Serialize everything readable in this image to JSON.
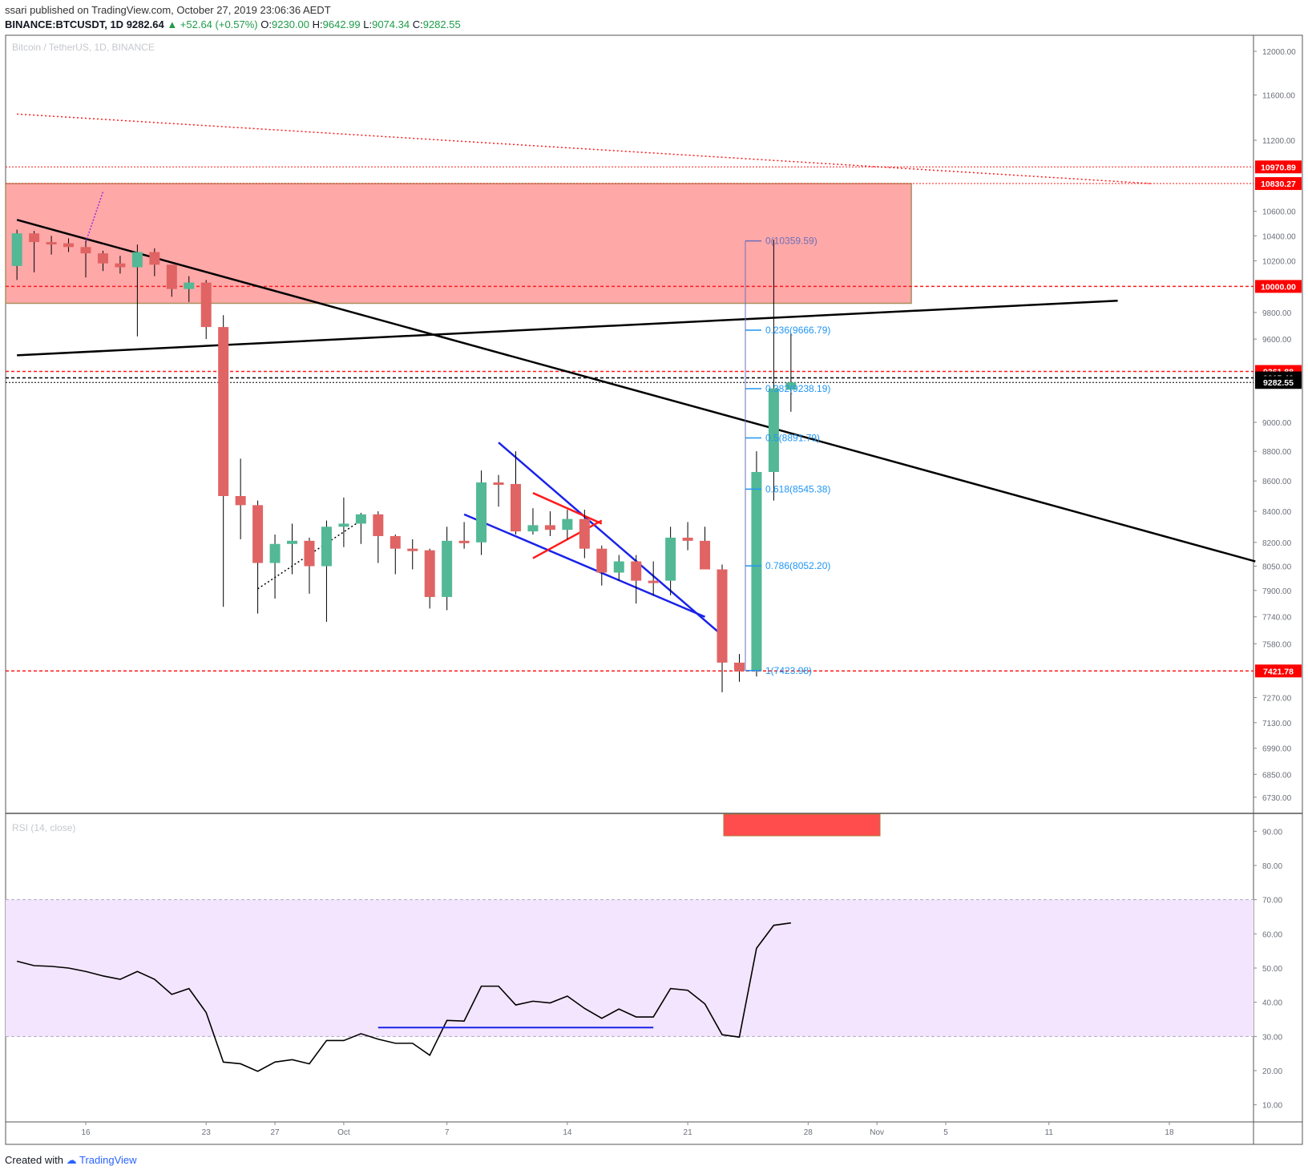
{
  "header": {
    "publisher": "ssari",
    "published_text": "published on TradingView.com, October 27, 2019 23:06:36 AEDT",
    "symbol": "BINANCE:BTCUSDT, 1D",
    "last": "9282.64",
    "change": "▲ +52.64 (+0.57%)",
    "o_label": "O:",
    "o_value": "9230.00",
    "h_label": "H:",
    "h_value": "9642.99",
    "l_label": "L:",
    "l_value": "9074.34",
    "c_label": "C:",
    "c_value": "9282.55"
  },
  "watermark": "Bitcoin / TetherUS, 1D, BINANCE",
  "rsi_label": "RSI (14, close)",
  "footer": {
    "created_with": "Created with",
    "brand": "TradingView"
  },
  "colors": {
    "up": "#53b895",
    "down": "#e06464",
    "neutral": "#9a8a6a",
    "zone": "#ffa8a8",
    "rsi_band": "#f3e5fd",
    "red_line": "#ff1a1a",
    "blue_line": "#1a23e8",
    "fib": "#2196f3",
    "tag_red": "#ff0000",
    "tag_black": "#000000"
  },
  "chart_data": [
    {
      "type": "candlestick",
      "title": "Bitcoin / TetherUS, 1D, BINANCE",
      "ylim": [
        6650,
        12150
      ],
      "y_scale": "log",
      "y_ticks": [
        "12000.00",
        "11600.00",
        "11200.00",
        "10600.00",
        "10400.00",
        "10200.00",
        "9800.00",
        "9600.00",
        "9000.00",
        "8800.00",
        "8600.00",
        "8400.00",
        "8200.00",
        "8050.00",
        "7900.00",
        "7740.00",
        "7580.00",
        "7270.00",
        "7130.00",
        "6990.00",
        "6850.00",
        "6730.00"
      ],
      "x_ticks": [
        {
          "label": "16",
          "day": "2019-09-16"
        },
        {
          "label": "23",
          "day": "2019-09-23"
        },
        {
          "label": "27",
          "day": "2019-09-27"
        },
        {
          "label": "Oct",
          "day": "2019-10-01"
        },
        {
          "label": "7",
          "day": "2019-10-07"
        },
        {
          "label": "14",
          "day": "2019-10-14"
        },
        {
          "label": "21",
          "day": "2019-10-21"
        },
        {
          "label": "28",
          "day": "2019-10-28"
        },
        {
          "label": "Nov",
          "day": "2019-11-01"
        },
        {
          "label": "5",
          "day": "2019-11-05"
        },
        {
          "label": "11",
          "day": "2019-11-11"
        },
        {
          "label": "18",
          "day": "2019-11-18"
        }
      ],
      "candles": [
        {
          "day": "2019-09-12",
          "o": 10160,
          "h": 10450,
          "l": 10050,
          "c": 10420
        },
        {
          "day": "2019-09-13",
          "o": 10420,
          "h": 10440,
          "l": 10110,
          "c": 10350
        },
        {
          "day": "2019-09-14",
          "o": 10350,
          "h": 10400,
          "l": 10250,
          "c": 10340
        },
        {
          "day": "2019-09-15",
          "o": 10340,
          "h": 10380,
          "l": 10270,
          "c": 10310
        },
        {
          "day": "2019-09-16",
          "o": 10310,
          "h": 10360,
          "l": 10070,
          "c": 10260
        },
        {
          "day": "2019-09-17",
          "o": 10260,
          "h": 10280,
          "l": 10120,
          "c": 10180
        },
        {
          "day": "2019-09-18",
          "o": 10180,
          "h": 10240,
          "l": 10100,
          "c": 10150
        },
        {
          "day": "2019-09-19",
          "o": 10150,
          "h": 10330,
          "l": 9620,
          "c": 10270
        },
        {
          "day": "2019-09-20",
          "o": 10270,
          "h": 10300,
          "l": 10080,
          "c": 10170
        },
        {
          "day": "2019-09-21",
          "o": 10170,
          "h": 10170,
          "l": 9920,
          "c": 9980
        },
        {
          "day": "2019-09-22",
          "o": 9980,
          "h": 10080,
          "l": 9880,
          "c": 10030
        },
        {
          "day": "2019-09-23",
          "o": 10030,
          "h": 10050,
          "l": 9600,
          "c": 9690
        },
        {
          "day": "2019-09-24",
          "o": 9690,
          "h": 9780,
          "l": 7800,
          "c": 8500
        },
        {
          "day": "2019-09-25",
          "o": 8500,
          "h": 8750,
          "l": 8220,
          "c": 8440
        },
        {
          "day": "2019-09-26",
          "o": 8440,
          "h": 8470,
          "l": 7760,
          "c": 8070
        },
        {
          "day": "2019-09-27",
          "o": 8070,
          "h": 8250,
          "l": 7850,
          "c": 8190
        },
        {
          "day": "2019-09-28",
          "o": 8190,
          "h": 8320,
          "l": 8000,
          "c": 8210
        },
        {
          "day": "2019-09-29",
          "o": 8210,
          "h": 8230,
          "l": 7880,
          "c": 8050
        },
        {
          "day": "2019-09-30",
          "o": 8050,
          "h": 8340,
          "l": 7710,
          "c": 8300
        },
        {
          "day": "2019-10-01",
          "o": 8300,
          "h": 8490,
          "l": 8170,
          "c": 8320
        },
        {
          "day": "2019-10-02",
          "o": 8320,
          "h": 8390,
          "l": 8190,
          "c": 8380
        },
        {
          "day": "2019-10-03",
          "o": 8380,
          "h": 8400,
          "l": 8070,
          "c": 8240
        },
        {
          "day": "2019-10-04",
          "o": 8240,
          "h": 8250,
          "l": 8000,
          "c": 8160
        },
        {
          "day": "2019-10-05",
          "o": 8160,
          "h": 8220,
          "l": 8030,
          "c": 8150
        },
        {
          "day": "2019-10-06",
          "o": 8150,
          "h": 8160,
          "l": 7790,
          "c": 7860
        },
        {
          "day": "2019-10-07",
          "o": 7860,
          "h": 8300,
          "l": 7780,
          "c": 8210
        },
        {
          "day": "2019-10-08",
          "o": 8210,
          "h": 8330,
          "l": 8160,
          "c": 8200
        },
        {
          "day": "2019-10-09",
          "o": 8200,
          "h": 8670,
          "l": 8120,
          "c": 8590
        },
        {
          "day": "2019-10-10",
          "o": 8590,
          "h": 8640,
          "l": 8430,
          "c": 8580
        },
        {
          "day": "2019-10-11",
          "o": 8580,
          "h": 8800,
          "l": 8250,
          "c": 8270
        },
        {
          "day": "2019-10-12",
          "o": 8270,
          "h": 8420,
          "l": 8250,
          "c": 8310
        },
        {
          "day": "2019-10-13",
          "o": 8310,
          "h": 8400,
          "l": 8240,
          "c": 8280
        },
        {
          "day": "2019-10-14",
          "o": 8280,
          "h": 8410,
          "l": 8220,
          "c": 8350
        },
        {
          "day": "2019-10-15",
          "o": 8350,
          "h": 8410,
          "l": 8100,
          "c": 8160
        },
        {
          "day": "2019-10-16",
          "o": 8160,
          "h": 8180,
          "l": 7930,
          "c": 8010
        },
        {
          "day": "2019-10-17",
          "o": 8010,
          "h": 8120,
          "l": 7960,
          "c": 8080
        },
        {
          "day": "2019-10-18",
          "o": 8080,
          "h": 8120,
          "l": 7820,
          "c": 7960
        },
        {
          "day": "2019-10-19",
          "o": 7960,
          "h": 8080,
          "l": 7870,
          "c": 7960
        },
        {
          "day": "2019-10-20",
          "o": 7960,
          "h": 8300,
          "l": 7870,
          "c": 8230
        },
        {
          "day": "2019-10-21",
          "o": 8230,
          "h": 8330,
          "l": 8150,
          "c": 8210
        },
        {
          "day": "2019-10-22",
          "o": 8210,
          "h": 8300,
          "l": 8030,
          "c": 8030
        },
        {
          "day": "2019-10-23",
          "o": 8030,
          "h": 8060,
          "l": 7300,
          "c": 7470
        },
        {
          "day": "2019-10-24",
          "o": 7470,
          "h": 7520,
          "l": 7360,
          "c": 7420
        },
        {
          "day": "2019-10-25",
          "o": 7420,
          "h": 8800,
          "l": 7390,
          "c": 8660
        },
        {
          "day": "2019-10-26",
          "o": 8660,
          "h": 10370,
          "l": 8470,
          "c": 9240
        },
        {
          "day": "2019-10-27",
          "o": 9230,
          "h": 9643,
          "l": 9074,
          "c": 9283
        }
      ],
      "horizontal_levels": [
        {
          "value": 10970.89,
          "label": "10970.89",
          "style": "dotted-red"
        },
        {
          "value": 10830.27,
          "label": "10830.27",
          "style": "dotted-red"
        },
        {
          "value": 10000.0,
          "label": "10000.00",
          "style": "dashed-red"
        },
        {
          "value": 9361.88,
          "label": "9361.88",
          "style": "dashed-red"
        },
        {
          "value": 9315.4,
          "label": "9315.40",
          "style": "dashed-black"
        },
        {
          "value": 9282.55,
          "label": "9282.55",
          "style": "dotted-black"
        },
        {
          "value": 7421.78,
          "label": "7421.78",
          "style": "dashed-red"
        }
      ],
      "resistance_zone": {
        "from_day": "2019-09-12",
        "to_day": "2019-11-03",
        "low": 9870,
        "high": 10830
      },
      "fib_levels": [
        {
          "label": "0(10359.59)",
          "value": 10359.59
        },
        {
          "label": "0.236(9666.79)",
          "value": 9666.79
        },
        {
          "label": "0.382(9238.19)",
          "value": 9238.19
        },
        {
          "label": "0.5(8891.79)",
          "value": 8891.79
        },
        {
          "label": "0.618(8545.38)",
          "value": 8545.38
        },
        {
          "label": "0.786(8052.20)",
          "value": 8052.2
        },
        {
          "label": "1(7423.98)",
          "value": 7423.98
        }
      ],
      "trendlines": [
        {
          "style": "black",
          "from": {
            "day": "2019-09-12",
            "value": 10530
          },
          "to": {
            "day": "2019-11-23",
            "value": 8080
          }
        },
        {
          "style": "black",
          "from": {
            "day": "2019-09-12",
            "value": 9480
          },
          "to": {
            "day": "2019-11-15",
            "value": 9890
          }
        },
        {
          "style": "red-dotted",
          "from": {
            "day": "2019-09-12",
            "value": 11430
          },
          "to": {
            "day": "2019-11-17",
            "value": 10830
          }
        },
        {
          "style": "blue",
          "from": {
            "day": "2019-10-10",
            "value": 8860
          },
          "to": {
            "day": "2019-10-23",
            "value": 7630
          }
        },
        {
          "style": "blue",
          "from": {
            "day": "2019-10-08",
            "value": 8380
          },
          "to": {
            "day": "2019-10-22",
            "value": 7740
          }
        },
        {
          "style": "red",
          "from": {
            "day": "2019-10-12",
            "value": 8520
          },
          "to": {
            "day": "2019-10-16",
            "value": 8320
          }
        },
        {
          "style": "red",
          "from": {
            "day": "2019-10-12",
            "value": 8100
          },
          "to": {
            "day": "2019-10-16",
            "value": 8340
          }
        },
        {
          "style": "black-dotted",
          "from": {
            "day": "2019-09-26",
            "value": 7910
          },
          "to": {
            "day": "2019-10-02",
            "value": 8340
          }
        },
        {
          "style": "purple-dotted",
          "from": {
            "day": "2019-09-16",
            "value": 10350
          },
          "to": {
            "day": "2019-09-17",
            "value": 10760
          }
        }
      ]
    },
    {
      "type": "line",
      "title": "RSI (14, close)",
      "ylim": [
        5,
        95
      ],
      "y_ticks": [
        "90.00",
        "80.00",
        "70.00",
        "60.00",
        "50.00",
        "40.00",
        "30.00",
        "20.00",
        "10.00"
      ],
      "band": [
        30,
        70
      ],
      "series": [
        {
          "values": [
            52,
            50.7,
            50.5,
            50,
            49,
            47.7,
            46.7,
            49,
            46.7,
            42.3,
            44,
            37,
            22.5,
            22,
            19.8,
            22.5,
            23.2,
            22,
            28.8,
            28.8,
            30.8,
            29.2,
            28,
            28,
            24.5,
            34.7,
            34.5,
            44.7,
            44.7,
            39.2,
            40.3,
            39.8,
            41.8,
            38.2,
            35.3,
            38,
            35.7,
            35.7,
            44,
            43.5,
            39.5,
            30.5,
            29.8,
            55.8,
            62.5,
            63.2
          ]
        }
      ],
      "annotations": [
        {
          "type": "hline",
          "style": "blue",
          "value": 32.6,
          "from_day": "2019-10-03",
          "to_day": "2019-10-19"
        }
      ]
    }
  ]
}
